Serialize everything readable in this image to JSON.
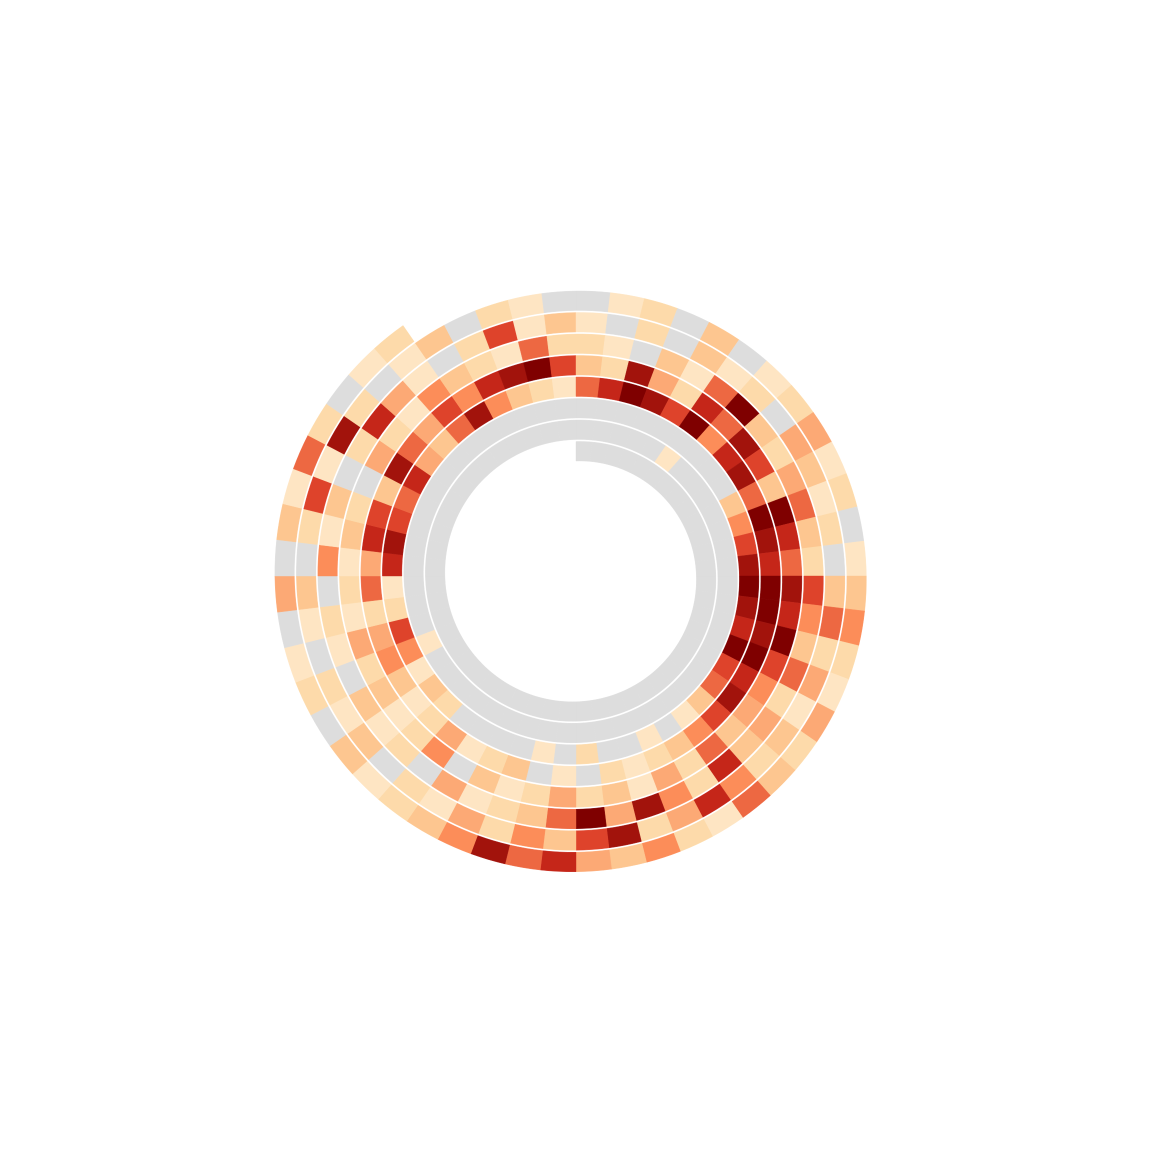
{
  "chart_data": {
    "type": "spiral_heatmap",
    "zlim": [
      0,
      10
    ],
    "zero_color": "#dddddd",
    "colorscale": [
      "#fff0dc",
      "#fdd49e",
      "#fc8d59",
      "#d7301f",
      "#7f0000"
    ],
    "values": [
      0,
      0,
      0,
      0,
      0,
      0,
      0,
      0,
      0,
      0,
      0,
      0,
      0,
      0,
      0,
      0,
      0,
      0,
      0,
      0,
      0,
      0,
      0,
      0,
      0,
      0,
      0,
      0,
      0,
      0,
      0,
      0,
      0,
      0,
      0,
      0,
      0,
      0,
      0,
      0,
      0,
      0,
      0,
      0,
      0,
      0,
      0,
      0,
      0,
      0,
      0,
      0,
      0,
      0,
      0,
      0,
      0,
      1,
      0,
      0,
      0,
      0,
      0,
      0,
      0,
      0,
      0,
      0,
      0,
      0,
      0,
      0,
      0,
      0,
      0,
      0,
      0,
      0,
      0,
      0,
      0,
      0,
      0,
      0,
      0,
      0,
      0,
      1,
      0,
      0,
      0,
      0,
      0,
      0,
      0,
      0,
      0,
      0,
      0,
      0,
      0,
      0,
      0,
      0,
      0,
      0,
      0,
      0,
      0,
      0,
      0,
      0,
      0,
      3,
      5,
      7,
      9,
      10,
      9,
      8,
      10,
      7,
      6,
      3,
      1,
      0,
      1,
      0,
      0,
      2,
      0,
      1,
      0,
      0,
      0,
      0,
      2,
      3,
      1,
      5,
      7,
      2,
      1,
      8,
      9,
      7,
      6,
      8,
      4,
      3,
      6,
      9,
      5,
      3,
      2,
      1,
      6,
      8,
      10,
      9,
      7,
      10,
      5,
      8,
      9,
      6,
      10,
      9,
      8,
      10,
      10,
      9,
      10,
      8,
      9,
      7,
      5,
      3,
      2,
      1,
      2,
      0,
      1,
      0,
      3,
      2,
      1,
      4,
      2,
      1,
      3,
      5,
      4,
      2,
      6,
      4,
      8,
      7,
      3,
      9,
      6,
      4,
      7,
      5,
      8,
      9,
      10,
      7,
      3,
      2,
      9,
      4,
      2,
      8,
      6,
      9,
      7,
      3,
      10,
      8,
      6,
      9,
      8,
      10,
      7,
      5,
      4,
      3,
      6,
      2,
      4,
      1,
      3,
      2,
      4,
      2,
      1,
      3,
      0,
      5,
      2,
      1,
      3,
      2,
      4,
      1,
      2,
      1,
      3,
      2,
      0,
      4,
      2,
      1,
      5,
      3,
      2,
      1,
      6,
      2,
      2,
      1,
      0,
      3,
      1,
      6,
      10,
      3,
      2,
      4,
      6,
      3,
      2,
      7,
      5,
      3,
      6,
      2,
      4,
      3,
      8,
      2,
      5,
      9,
      4,
      10,
      6,
      3,
      2,
      1,
      4,
      0,
      2,
      1,
      3,
      0,
      1,
      2,
      0,
      5,
      1,
      3,
      0,
      2,
      8,
      4,
      1,
      0,
      2,
      7,
      1,
      3,
      1,
      0,
      2,
      0,
      3,
      1,
      2,
      0,
      4,
      3,
      1,
      2,
      0,
      3,
      6,
      2,
      4,
      1,
      3,
      2,
      5,
      8,
      4,
      2,
      9,
      7,
      3,
      5,
      2,
      4,
      1,
      2,
      0,
      3,
      1,
      2,
      0,
      1,
      3,
      0,
      2,
      7,
      1,
      9,
      2,
      0,
      1,
      3,
      0,
      2,
      1,
      0,
      0,
      1,
      2,
      0,
      3,
      0,
      1,
      2,
      4,
      1,
      2,
      0,
      1,
      3,
      5,
      2,
      1,
      4,
      2,
      3,
      6,
      1,
      2,
      5,
      3,
      4,
      8,
      6,
      9,
      5,
      3,
      2,
      1,
      3,
      0,
      2,
      1,
      0,
      4,
      0,
      3,
      1,
      6,
      2,
      0,
      1,
      2
    ]
  }
}
